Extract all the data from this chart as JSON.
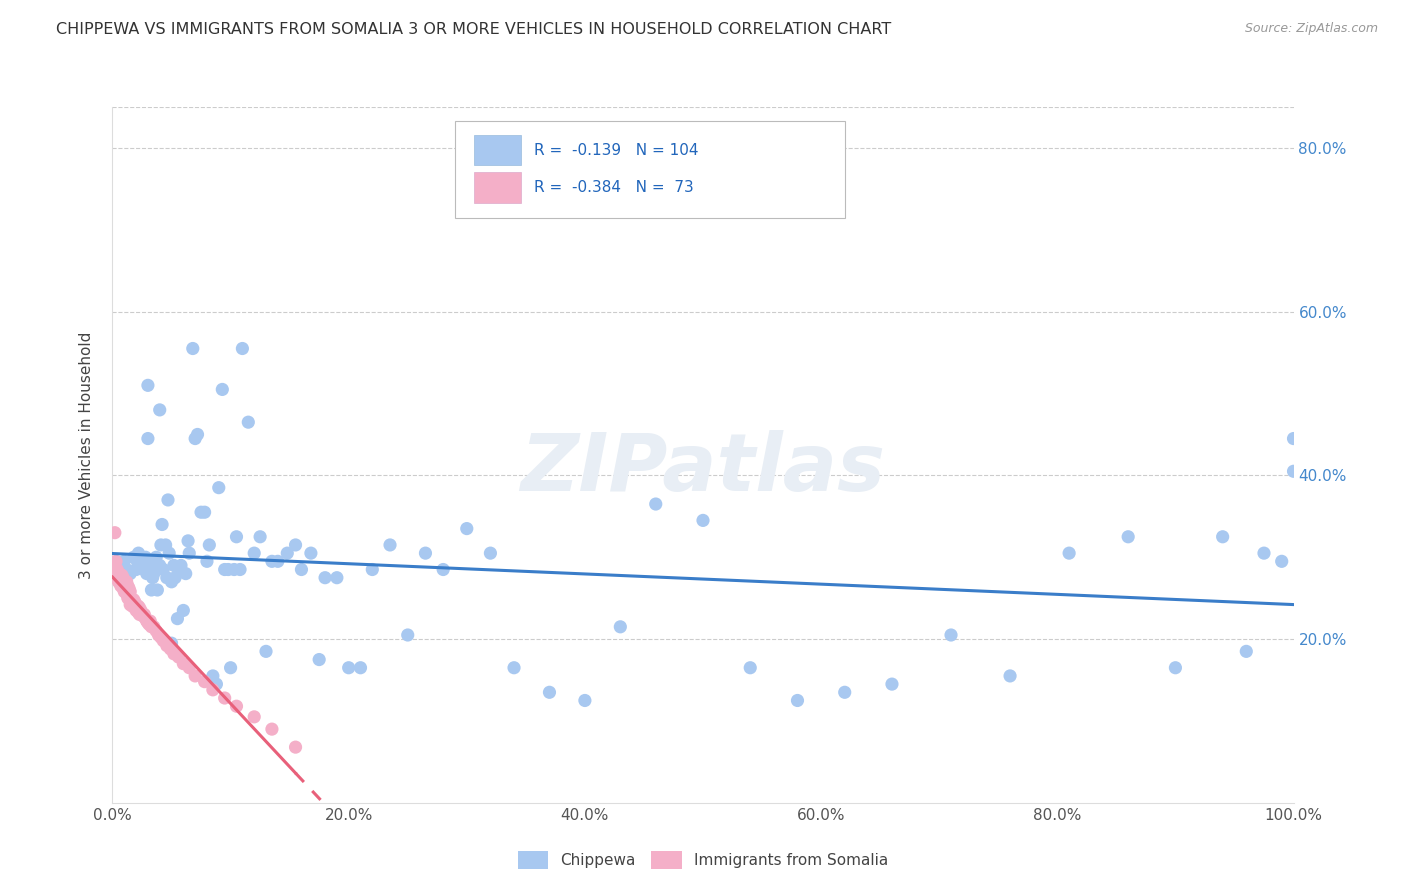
{
  "title": "CHIPPEWA VS IMMIGRANTS FROM SOMALIA 3 OR MORE VEHICLES IN HOUSEHOLD CORRELATION CHART",
  "source": "Source: ZipAtlas.com",
  "ylabel": "3 or more Vehicles in Household",
  "xlim": [
    0.0,
    1.0
  ],
  "ylim": [
    0.0,
    0.85
  ],
  "xtick_labels": [
    "0.0%",
    "20.0%",
    "40.0%",
    "60.0%",
    "80.0%",
    "100.0%"
  ],
  "xtick_vals": [
    0.0,
    0.2,
    0.4,
    0.6,
    0.8,
    1.0
  ],
  "ytick_labels": [
    "20.0%",
    "40.0%",
    "60.0%",
    "80.0%"
  ],
  "ytick_vals": [
    0.2,
    0.4,
    0.6,
    0.8
  ],
  "chippewa_color": "#a8c8f0",
  "somalia_color": "#f4afc8",
  "trendline_chippewa_color": "#3a7dc9",
  "trendline_somalia_color": "#e8607a",
  "watermark": "ZIPatlas",
  "background_color": "#ffffff",
  "chippewa_x": [
    0.008,
    0.01,
    0.012,
    0.015,
    0.018,
    0.02,
    0.021,
    0.022,
    0.025,
    0.025,
    0.027,
    0.028,
    0.029,
    0.03,
    0.03,
    0.031,
    0.032,
    0.033,
    0.034,
    0.035,
    0.036,
    0.037,
    0.038,
    0.04,
    0.04,
    0.041,
    0.042,
    0.043,
    0.045,
    0.046,
    0.047,
    0.048,
    0.05,
    0.05,
    0.052,
    0.053,
    0.055,
    0.056,
    0.058,
    0.06,
    0.062,
    0.064,
    0.065,
    0.068,
    0.07,
    0.072,
    0.075,
    0.078,
    0.08,
    0.082,
    0.085,
    0.088,
    0.09,
    0.093,
    0.095,
    0.098,
    0.1,
    0.103,
    0.105,
    0.108,
    0.11,
    0.115,
    0.12,
    0.125,
    0.13,
    0.135,
    0.14,
    0.148,
    0.155,
    0.16,
    0.168,
    0.175,
    0.18,
    0.19,
    0.2,
    0.21,
    0.22,
    0.235,
    0.25,
    0.265,
    0.28,
    0.3,
    0.32,
    0.34,
    0.37,
    0.4,
    0.43,
    0.46,
    0.5,
    0.54,
    0.58,
    0.62,
    0.66,
    0.71,
    0.76,
    0.81,
    0.86,
    0.9,
    0.94,
    0.96,
    0.975,
    0.99,
    1.0,
    1.0
  ],
  "chippewa_y": [
    0.285,
    0.295,
    0.285,
    0.28,
    0.3,
    0.285,
    0.295,
    0.305,
    0.3,
    0.29,
    0.285,
    0.3,
    0.28,
    0.51,
    0.445,
    0.285,
    0.295,
    0.26,
    0.275,
    0.28,
    0.295,
    0.3,
    0.26,
    0.29,
    0.48,
    0.315,
    0.34,
    0.285,
    0.315,
    0.275,
    0.37,
    0.305,
    0.27,
    0.195,
    0.29,
    0.275,
    0.225,
    0.285,
    0.29,
    0.235,
    0.28,
    0.32,
    0.305,
    0.555,
    0.445,
    0.45,
    0.355,
    0.355,
    0.295,
    0.315,
    0.155,
    0.145,
    0.385,
    0.505,
    0.285,
    0.285,
    0.165,
    0.285,
    0.325,
    0.285,
    0.555,
    0.465,
    0.305,
    0.325,
    0.185,
    0.295,
    0.295,
    0.305,
    0.315,
    0.285,
    0.305,
    0.175,
    0.275,
    0.275,
    0.165,
    0.165,
    0.285,
    0.315,
    0.205,
    0.305,
    0.285,
    0.335,
    0.305,
    0.165,
    0.135,
    0.125,
    0.215,
    0.365,
    0.345,
    0.165,
    0.125,
    0.135,
    0.145,
    0.205,
    0.155,
    0.305,
    0.325,
    0.165,
    0.325,
    0.185,
    0.305,
    0.295,
    0.445,
    0.405
  ],
  "somalia_x": [
    0.002,
    0.003,
    0.004,
    0.005,
    0.005,
    0.006,
    0.006,
    0.007,
    0.007,
    0.008,
    0.008,
    0.009,
    0.009,
    0.01,
    0.01,
    0.01,
    0.011,
    0.011,
    0.012,
    0.012,
    0.012,
    0.013,
    0.013,
    0.013,
    0.014,
    0.014,
    0.015,
    0.015,
    0.015,
    0.016,
    0.016,
    0.017,
    0.017,
    0.018,
    0.018,
    0.019,
    0.019,
    0.02,
    0.02,
    0.021,
    0.022,
    0.022,
    0.023,
    0.023,
    0.024,
    0.025,
    0.026,
    0.027,
    0.028,
    0.029,
    0.03,
    0.031,
    0.032,
    0.033,
    0.035,
    0.037,
    0.039,
    0.041,
    0.043,
    0.046,
    0.049,
    0.052,
    0.056,
    0.06,
    0.065,
    0.07,
    0.078,
    0.085,
    0.095,
    0.105,
    0.12,
    0.135,
    0.155
  ],
  "somalia_y": [
    0.33,
    0.295,
    0.285,
    0.28,
    0.27,
    0.28,
    0.272,
    0.278,
    0.265,
    0.278,
    0.268,
    0.275,
    0.262,
    0.272,
    0.265,
    0.258,
    0.27,
    0.262,
    0.27,
    0.263,
    0.255,
    0.265,
    0.256,
    0.25,
    0.262,
    0.255,
    0.258,
    0.25,
    0.242,
    0.25,
    0.244,
    0.248,
    0.24,
    0.248,
    0.24,
    0.245,
    0.238,
    0.242,
    0.235,
    0.24,
    0.24,
    0.232,
    0.238,
    0.23,
    0.235,
    0.232,
    0.228,
    0.23,
    0.225,
    0.222,
    0.22,
    0.218,
    0.222,
    0.215,
    0.215,
    0.21,
    0.205,
    0.202,
    0.198,
    0.192,
    0.188,
    0.182,
    0.178,
    0.17,
    0.165,
    0.155,
    0.148,
    0.138,
    0.128,
    0.118,
    0.105,
    0.09,
    0.068
  ]
}
